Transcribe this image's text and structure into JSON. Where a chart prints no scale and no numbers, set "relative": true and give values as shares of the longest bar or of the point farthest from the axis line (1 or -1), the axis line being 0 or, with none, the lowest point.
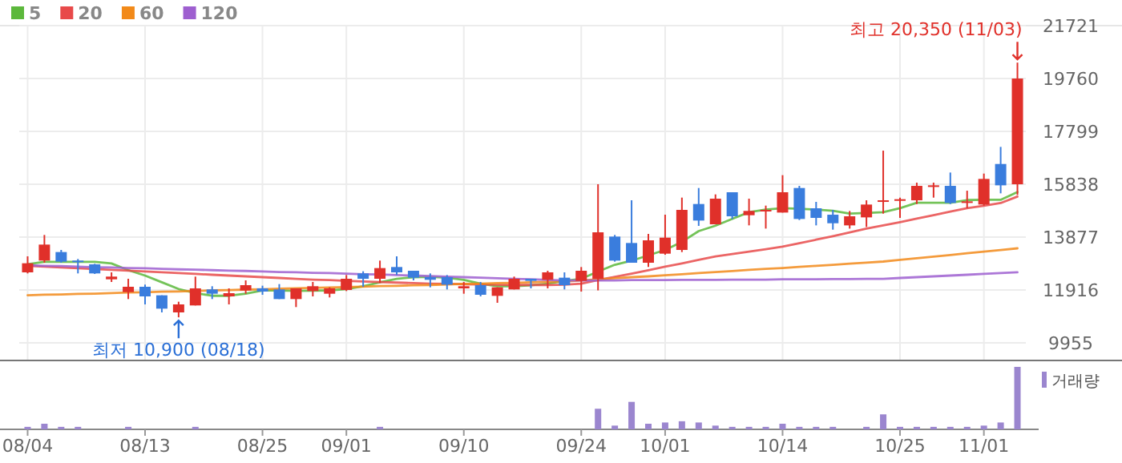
{
  "chart_data": [
    {
      "type": "candlestick",
      "categories": [
        null,
        null,
        null,
        null,
        null,
        null,
        null,
        null,
        null,
        null,
        null,
        null,
        null,
        null,
        null,
        null,
        null,
        null,
        null,
        null,
        null,
        null,
        null,
        null,
        null,
        null,
        null,
        null,
        null,
        null,
        null,
        null,
        null,
        null,
        null,
        null,
        null,
        null,
        null,
        null,
        null,
        null,
        null,
        null,
        null,
        null,
        null,
        null,
        null,
        null,
        null,
        null,
        null,
        null,
        null,
        null,
        null,
        null,
        null,
        null
      ],
      "ohlc": [
        [
          12569,
          13163,
          12529,
          12906
        ],
        [
          13005,
          13956,
          12925,
          13599
        ],
        [
          13322,
          13401,
          12925,
          12965
        ],
        [
          13005,
          13064,
          12529,
          12965
        ],
        [
          12866,
          12886,
          12509,
          12529
        ],
        [
          12311,
          12569,
          12212,
          12411
        ],
        [
          11836,
          12331,
          11578,
          12034
        ],
        [
          12034,
          12113,
          11380,
          11677
        ],
        [
          11717,
          11717,
          11083,
          11222
        ],
        [
          11083,
          11479,
          10900,
          11380
        ],
        [
          11341,
          12411,
          11341,
          11975
        ],
        [
          11935,
          12054,
          11578,
          11776
        ],
        [
          11677,
          11975,
          11380,
          11796
        ],
        [
          11895,
          12272,
          11776,
          12093
        ],
        [
          11975,
          12074,
          11737,
          11856
        ],
        [
          11935,
          12133,
          11578,
          11578
        ],
        [
          11578,
          11975,
          11281,
          11975
        ],
        [
          11875,
          12212,
          11677,
          12054
        ],
        [
          11776,
          12014,
          11638,
          11975
        ],
        [
          11915,
          12470,
          11875,
          12331
        ],
        [
          12529,
          12609,
          12034,
          12331
        ],
        [
          12331,
          13005,
          12173,
          12727
        ],
        [
          12767,
          13163,
          12470,
          12569
        ],
        [
          12628,
          12628,
          12272,
          12371
        ],
        [
          12391,
          12529,
          12014,
          12292
        ],
        [
          12391,
          12470,
          11935,
          12113
        ],
        [
          11975,
          12212,
          11776,
          12054
        ],
        [
          12093,
          12212,
          11677,
          11737
        ],
        [
          11697,
          12014,
          11440,
          12014
        ],
        [
          11935,
          12411,
          11935,
          12331
        ],
        [
          12331,
          12331,
          11975,
          12252
        ],
        [
          12292,
          12628,
          11975,
          12569
        ],
        [
          12371,
          12569,
          11935,
          12093
        ],
        [
          12252,
          12767,
          11856,
          12628
        ],
        [
          12330,
          15838,
          11900,
          14054
        ],
        [
          13896,
          13956,
          12965,
          13005
        ],
        [
          13658,
          15243,
          12925,
          12925
        ],
        [
          12925,
          13995,
          12767,
          13757
        ],
        [
          13262,
          14708,
          13222,
          13856
        ],
        [
          13400,
          15342,
          13321,
          14886
        ],
        [
          15104,
          15698,
          14292,
          14490
        ],
        [
          14351,
          15461,
          14351,
          15302
        ],
        [
          15540,
          15540,
          14549,
          14648
        ],
        [
          14688,
          15302,
          14312,
          14847
        ],
        [
          14847,
          15045,
          14193,
          14886
        ],
        [
          14787,
          16174,
          14787,
          15540
        ],
        [
          15698,
          15778,
          14510,
          14549
        ],
        [
          14945,
          15183,
          14311,
          14589
        ],
        [
          14707,
          14886,
          14153,
          14390
        ],
        [
          14311,
          14846,
          14192,
          14648
        ],
        [
          14608,
          15242,
          14251,
          15084
        ],
        [
          15203,
          17084,
          14747,
          15242
        ],
        [
          15222,
          15341,
          14588,
          15282
        ],
        [
          15242,
          15896,
          15103,
          15777
        ],
        [
          15737,
          15896,
          15341,
          15797
        ],
        [
          15777,
          16272,
          15103,
          15143
        ],
        [
          15143,
          15598,
          14945,
          15203
        ],
        [
          15084,
          16233,
          15044,
          16035
        ],
        [
          16589,
          17223,
          15500,
          15797
        ],
        [
          15836,
          20350,
          15440,
          19759
        ]
      ],
      "colors": [
        "#e0302a",
        "#e0302a",
        "#3a7ddd",
        "#3a7ddd",
        "#3a7ddd",
        "#e0302a",
        "#e0302a",
        "#3a7ddd",
        "#3a7ddd",
        "#e0302a",
        "#e0302a",
        "#3a7ddd",
        "#e0302a",
        "#e0302a",
        "#3a7ddd",
        "#3a7ddd",
        "#e0302a",
        "#e0302a",
        "#e0302a",
        "#e0302a",
        "#3a7ddd",
        "#e0302a",
        "#3a7ddd",
        "#3a7ddd",
        "#3a7ddd",
        "#3a7ddd",
        "#e0302a",
        "#3a7ddd",
        "#e0302a",
        "#e0302a",
        "#3a7ddd",
        "#e0302a",
        "#3a7ddd",
        "#e0302a",
        "#e0302a",
        "#3a7ddd",
        "#3a7ddd",
        "#e0302a",
        "#e0302a",
        "#e0302a",
        "#3a7ddd",
        "#e0302a",
        "#3a7ddd",
        "#e0302a",
        "#e0302a",
        "#e0302a",
        "#3a7ddd",
        "#3a7ddd",
        "#3a7ddd",
        "#e0302a",
        "#e0302a",
        "#e0302a",
        "#e0302a",
        "#e0302a",
        "#e0302a",
        "#3a7ddd",
        "#e0302a",
        "#e0302a",
        "#3a7ddd",
        "#e0302a"
      ],
      "series": [
        {
          "name": "5",
          "type": "line",
          "color": "#5cb83c",
          "values": [
            12870,
            12960,
            12960,
            12960,
            12960,
            12900,
            12650,
            12450,
            12200,
            11950,
            11800,
            11700,
            11700,
            11780,
            11900,
            11900,
            11880,
            11890,
            11900,
            11950,
            12050,
            12200,
            12330,
            12390,
            12400,
            12370,
            12290,
            12150,
            12050,
            12050,
            12090,
            12150,
            12250,
            12330,
            12600,
            12850,
            13000,
            13200,
            13400,
            13700,
            14100,
            14300,
            14550,
            14800,
            14900,
            14950,
            14930,
            14900,
            14850,
            14750,
            14770,
            14800,
            14950,
            15150,
            15150,
            15150,
            15250,
            15260,
            15260,
            15550
          ]
        },
        {
          "name": "20",
          "type": "line",
          "color": "#e84a4a",
          "values": [
            12810,
            12780,
            12750,
            12720,
            12690,
            12660,
            12630,
            12600,
            12570,
            12540,
            12510,
            12480,
            12450,
            12420,
            12390,
            12360,
            12330,
            12300,
            12280,
            12250,
            12230,
            12210,
            12190,
            12170,
            12150,
            12140,
            12130,
            12120,
            12110,
            12100,
            12100,
            12100,
            12110,
            12150,
            12280,
            12400,
            12520,
            12650,
            12780,
            12900,
            13030,
            13160,
            13250,
            13340,
            13430,
            13520,
            13650,
            13780,
            13910,
            14050,
            14190,
            14310,
            14430,
            14560,
            14690,
            14820,
            14950,
            15040,
            15140,
            15380
          ]
        },
        {
          "name": "60",
          "type": "line",
          "color": "#f28a1a",
          "values": [
            11720,
            11740,
            11750,
            11770,
            11780,
            11800,
            11820,
            11830,
            11850,
            11860,
            11880,
            11900,
            11910,
            11930,
            11940,
            11960,
            11980,
            11990,
            12010,
            12020,
            12040,
            12060,
            12070,
            12090,
            12100,
            12120,
            12140,
            12150,
            12170,
            12180,
            12200,
            12220,
            12230,
            12270,
            12310,
            12350,
            12390,
            12420,
            12460,
            12500,
            12540,
            12580,
            12620,
            12660,
            12700,
            12730,
            12770,
            12810,
            12850,
            12890,
            12930,
            12970,
            13030,
            13090,
            13150,
            13210,
            13280,
            13340,
            13400,
            13460
          ]
        },
        {
          "name": "120",
          "type": "line",
          "color": "#9e5fd0",
          "values": [
            12830,
            12810,
            12800,
            12780,
            12760,
            12750,
            12730,
            12720,
            12700,
            12680,
            12670,
            12650,
            12630,
            12620,
            12600,
            12580,
            12570,
            12550,
            12540,
            12520,
            12500,
            12490,
            12470,
            12450,
            12430,
            12410,
            12390,
            12370,
            12350,
            12330,
            12310,
            12290,
            12270,
            12270,
            12270,
            12270,
            12280,
            12280,
            12280,
            12290,
            12290,
            12290,
            12300,
            12300,
            12300,
            12310,
            12310,
            12310,
            12320,
            12320,
            12330,
            12330,
            12360,
            12390,
            12420,
            12450,
            12480,
            12510,
            12540,
            12570
          ]
        }
      ],
      "ylim": [
        9300,
        21721
      ],
      "yticks": [
        9955,
        11916,
        13877,
        15838,
        17799,
        19760,
        21721
      ],
      "grid": true,
      "legend": "top left",
      "tick_labels": "y",
      "annotations": [
        {
          "text": "최저 10,900 (08/18)",
          "y": 10900
        },
        "최고 20,350 (11/03)"
      ]
    },
    {
      "type": "bar",
      "relative": true,
      "categories": [
        "08/04",
        null,
        null,
        null,
        null,
        null,
        null,
        "08/13",
        null,
        null,
        null,
        null,
        null,
        null,
        "08/25",
        null,
        null,
        null,
        null,
        "09/01",
        null,
        null,
        null,
        null,
        null,
        null,
        "09/10",
        null,
        null,
        null,
        null,
        null,
        null,
        "09/24",
        null,
        null,
        null,
        null,
        "10/01",
        null,
        null,
        null,
        null,
        null,
        null,
        "10/14",
        null,
        null,
        null,
        null,
        null,
        null,
        "10/25",
        null,
        null,
        null,
        null,
        "11/01",
        null,
        null
      ],
      "series": [
        {
          "name": "거래량",
          "color": "#9b86cf",
          "values": [
            0.04,
            0.09,
            0.04,
            0.04,
            0,
            0,
            0.04,
            0,
            0,
            0,
            0.04,
            0,
            0,
            0,
            0,
            0,
            0,
            0,
            0,
            0,
            0,
            0.04,
            0,
            0,
            0,
            0,
            0,
            0,
            0,
            0,
            0,
            0,
            0,
            0,
            0.33,
            0.06,
            0.44,
            0.09,
            0.11,
            0.13,
            0.11,
            0.06,
            0.04,
            0.04,
            0.04,
            0.09,
            0.04,
            0.04,
            0.04,
            0,
            0.04,
            0.24,
            0.04,
            0.04,
            0.04,
            0.04,
            0.04,
            0.06,
            0.11,
            1
          ]
        }
      ],
      "legend": "top right",
      "tick_labels": "x"
    }
  ]
}
